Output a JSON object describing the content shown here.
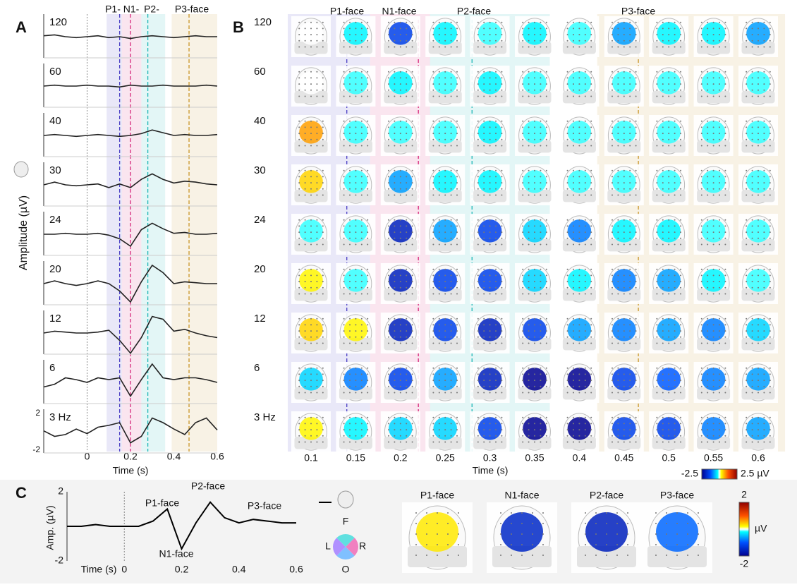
{
  "panel_a": {
    "label": "A",
    "y_label": "Amplitude (µV)",
    "x_label": "Time (s)",
    "xlim": [
      -0.2,
      0.6
    ],
    "xticks": [
      0,
      0.2,
      0.4,
      0.6
    ],
    "yticks": [
      2,
      -2
    ],
    "x": [
      -0.2,
      -0.15,
      -0.1,
      -0.05,
      0,
      0.05,
      0.1,
      0.15,
      0.2,
      0.25,
      0.3,
      0.35,
      0.4,
      0.45,
      0.5,
      0.55,
      0.6
    ],
    "components": [
      {
        "name": "P1-",
        "range": [
          0.09,
          0.16
        ],
        "marker": 0.15,
        "color": "#4b3fc4"
      },
      {
        "name": "N1-",
        "range": [
          0.16,
          0.25
        ],
        "marker": 0.2,
        "color": "#d6267a"
      },
      {
        "name": "P2-",
        "range": [
          0.25,
          0.36
        ],
        "marker": 0.28,
        "color": "#1cb5b5"
      },
      {
        "name": "P3-face",
        "range": [
          0.39,
          0.6
        ],
        "marker": 0.47,
        "color": "#c9962a"
      }
    ],
    "rows": [
      {
        "label": "120",
        "values": [
          0.1,
          0.2,
          0,
          -0.1,
          0,
          0.1,
          -0.1,
          0,
          -0.2,
          0,
          0.1,
          0,
          -0.1,
          0,
          0.1,
          0,
          0
        ]
      },
      {
        "label": "60",
        "values": [
          0,
          0.1,
          0,
          0,
          0.1,
          0,
          0,
          -0.1,
          0.1,
          0,
          0,
          0.1,
          0,
          0,
          0,
          0.1,
          0
        ]
      },
      {
        "label": "40",
        "values": [
          0,
          0.1,
          0,
          -0.1,
          0,
          0.1,
          0,
          -0.1,
          0,
          0.2,
          0.6,
          0.3,
          0,
          0.1,
          0,
          0,
          0.1
        ]
      },
      {
        "label": "30",
        "values": [
          0,
          0.3,
          0,
          -0.1,
          0,
          0.1,
          -0.3,
          0.1,
          -0.3,
          0.6,
          1.2,
          0.6,
          0.2,
          0.4,
          0.3,
          0.1,
          0
        ]
      },
      {
        "label": "24",
        "values": [
          0,
          0,
          0.1,
          0,
          0,
          0.1,
          -0.1,
          -0.5,
          -1.3,
          0.5,
          1.2,
          0.6,
          0.1,
          0.2,
          0,
          0,
          0.1
        ]
      },
      {
        "label": "20",
        "values": [
          0,
          0.3,
          0,
          -0.2,
          0,
          0.3,
          0,
          -0.8,
          -2,
          0.2,
          2,
          1.2,
          0,
          0.2,
          0.1,
          0,
          0
        ]
      },
      {
        "label": "12",
        "values": [
          0,
          0.2,
          0.1,
          0,
          0,
          0.1,
          0.3,
          -0.8,
          -2.2,
          -0.5,
          1.8,
          1.5,
          0.2,
          0.4,
          0,
          -0.3,
          -0.5
        ]
      },
      {
        "label": "6",
        "values": [
          -0.5,
          -0.2,
          0.5,
          0.3,
          0,
          0.5,
          0.3,
          0.5,
          -1.5,
          0.3,
          2,
          0.5,
          0.3,
          0.5,
          0.5,
          0.3,
          0
        ]
      },
      {
        "label": "3 Hz",
        "values": [
          0.1,
          -0.5,
          -0.3,
          0.3,
          -0.2,
          0.5,
          0.7,
          1,
          -1.2,
          -0.5,
          1.5,
          1,
          0.3,
          -0.3,
          1,
          1.5,
          0.2
        ]
      }
    ]
  },
  "panel_b": {
    "label": "B",
    "x_label": "Time (s)",
    "columns": [
      0.1,
      0.15,
      0.2,
      0.25,
      0.3,
      0.35,
      0.4,
      0.45,
      0.5,
      0.55,
      0.6
    ],
    "components": [
      {
        "name": "P1-face",
        "range": [
          0.074,
          0.166
        ],
        "marker": 0.14,
        "color": "#4b3fc4"
      },
      {
        "name": "N1-face",
        "range": [
          0.166,
          0.233
        ],
        "marker": 0.22,
        "color": "#d6267a"
      },
      {
        "name": "P2-face",
        "range": [
          0.233,
          0.367
        ],
        "marker": 0.28,
        "color": "#1cb5b5"
      },
      {
        "name": "P3-face",
        "range": [
          0.42,
          0.63
        ],
        "marker": 0.466,
        "color": "#c9962a"
      }
    ],
    "rows": [
      "120",
      "60",
      "40",
      "30",
      "24",
      "20",
      "12",
      "6",
      "3 Hz"
    ],
    "maps": [
      [
        0,
        -0.3,
        -1.5,
        -0.3,
        -0.2,
        -0.3,
        -0.2,
        -0.8,
        -0.3,
        -0.3,
        -0.8
      ],
      [
        0,
        -0.2,
        -0.3,
        -0.2,
        -0.3,
        -0.2,
        -0.2,
        -0.2,
        -0.2,
        -0.2,
        -0.2
      ],
      [
        0.8,
        -0.2,
        -0.2,
        -0.2,
        -0.3,
        -0.2,
        -0.2,
        -0.2,
        -0.2,
        -0.2,
        -0.2
      ],
      [
        0.5,
        -0.2,
        -0.8,
        -0.3,
        -0.3,
        -0.2,
        -0.2,
        -0.2,
        -0.2,
        -0.2,
        -0.2
      ],
      [
        -0.2,
        -0.2,
        -2,
        -0.8,
        -1.5,
        -0.5,
        -1,
        -0.3,
        -0.3,
        -0.2,
        -0.2
      ],
      [
        0.3,
        -0.2,
        -2,
        -1.5,
        -1.5,
        -0.5,
        -0.3,
        -1,
        -0.8,
        -0.3,
        -0.2
      ],
      [
        0.5,
        0.3,
        -2,
        -1.5,
        -2,
        -1.5,
        -0.8,
        -1,
        -0.8,
        -1,
        -0.5
      ],
      [
        -0.5,
        -1,
        -1.5,
        -0.8,
        -2,
        -2.5,
        -2.5,
        -1.5,
        -1.2,
        -1,
        -0.8
      ],
      [
        0.3,
        -0.3,
        -0.5,
        -0.5,
        -1.5,
        -2.5,
        -2.5,
        -1.5,
        -1.5,
        -1,
        -0.8
      ]
    ],
    "colorbar": {
      "lim": [
        -2.5,
        2.5
      ],
      "ticks": [
        -2.5,
        {
          "value": 2.5,
          "label": "2.5 µV"
        }
      ]
    }
  },
  "panel_c": {
    "label": "C",
    "y_label": "Amp. (µV)",
    "x_label": "Time (s)",
    "xlim": [
      -0.2,
      0.6
    ],
    "xticks": [
      0,
      0.2,
      0.4,
      0.6
    ],
    "ylim": [
      -2,
      2
    ],
    "yticks": [
      2,
      -2
    ],
    "x": [
      -0.2,
      -0.15,
      -0.1,
      -0.05,
      0,
      0.05,
      0.1,
      0.15,
      0.2,
      0.25,
      0.3,
      0.35,
      0.4,
      0.45,
      0.5,
      0.55,
      0.6
    ],
    "values": [
      0,
      0,
      0.1,
      0,
      0,
      0,
      0.3,
      1,
      -1.3,
      0.2,
      1.4,
      0.5,
      0.2,
      0.4,
      0.3,
      0.2,
      0.2
    ],
    "annotations": [
      {
        "text": "P1-face",
        "color": "#4b3fc4"
      },
      {
        "text": "N1-face",
        "color": "#d6267a"
      },
      {
        "text": "P2-face",
        "color": "#1cb5b5"
      },
      {
        "text": "P3-face",
        "color": "#c9962a"
      }
    ],
    "orientation": [
      "F",
      "L",
      "R",
      "O"
    ],
    "topomaps": [
      {
        "name": "P1-face",
        "value": 0.3,
        "color": "#4b3fc4"
      },
      {
        "name": "N1-face",
        "value": -1.5,
        "color": "#d6267a"
      },
      {
        "name": "P2-face",
        "value": -1.6,
        "color": "#1cb5b5"
      },
      {
        "name": "P3-face",
        "value": -0.9,
        "color": "#c9962a"
      }
    ],
    "colorbar": {
      "lim": [
        -2,
        2
      ],
      "ticks": [
        2,
        -2
      ],
      "unit": "µV"
    }
  }
}
